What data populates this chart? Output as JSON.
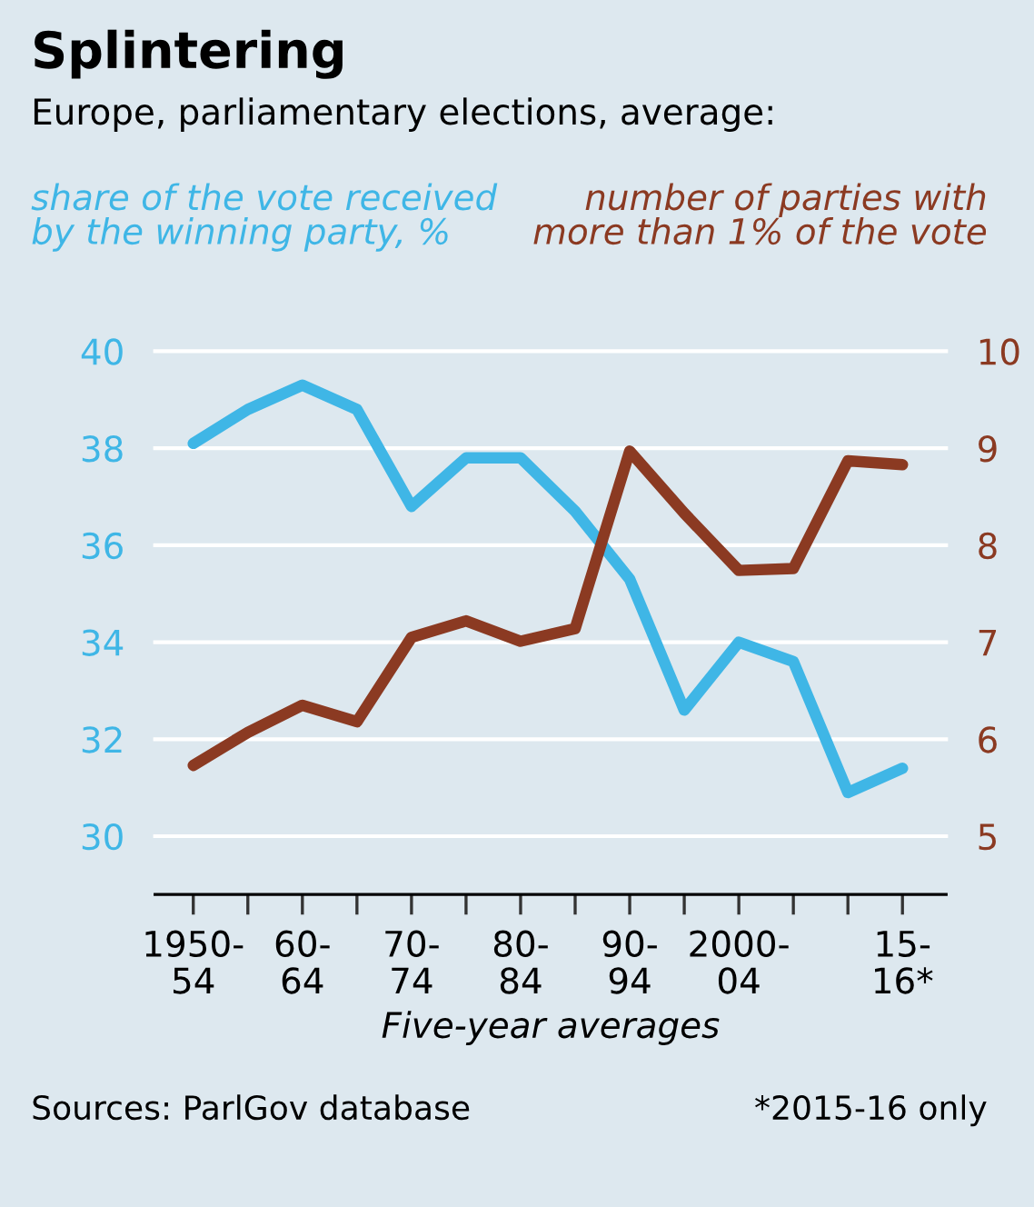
{
  "chart_data": {
    "type": "line",
    "title": "Splintering",
    "subtitle": "Europe, parliamentary elections, average:",
    "xlabel": "Five-year averages",
    "categories": [
      "1950-\n54",
      null,
      "60-\n64",
      null,
      "70-\n74",
      null,
      "80-\n84",
      null,
      "90-\n94",
      null,
      "2000-\n04",
      null,
      null,
      "15-\n16*"
    ],
    "series": [
      {
        "name": "share of the vote received\nby the winning party, %",
        "color": "#3fb6e6",
        "values": [
          38.1,
          38.8,
          39.3,
          38.8,
          36.8,
          37.8,
          37.8,
          36.7,
          35.3,
          32.6,
          34.0,
          33.6,
          30.9,
          31.4
        ]
      },
      {
        "name": "number of parties with\nmore than 1% of the vote",
        "color": "#8b3a22",
        "axis": "y2",
        "values": [
          5.73,
          6.07,
          6.35,
          6.18,
          7.05,
          7.22,
          7.01,
          7.14,
          8.97,
          8.33,
          7.74,
          7.76,
          8.87,
          8.83
        ]
      }
    ],
    "ylim": [
      28.8,
      40
    ],
    "yticks": [
      30,
      32,
      34,
      36,
      38,
      40
    ],
    "y2lim": [
      4.4,
      10
    ],
    "y2ticks": [
      5,
      6,
      7,
      8,
      9,
      10
    ],
    "grid": "y",
    "legend": false,
    "annotations": [
      "Sources: ParlGov database",
      "*2015-16 only"
    ]
  }
}
